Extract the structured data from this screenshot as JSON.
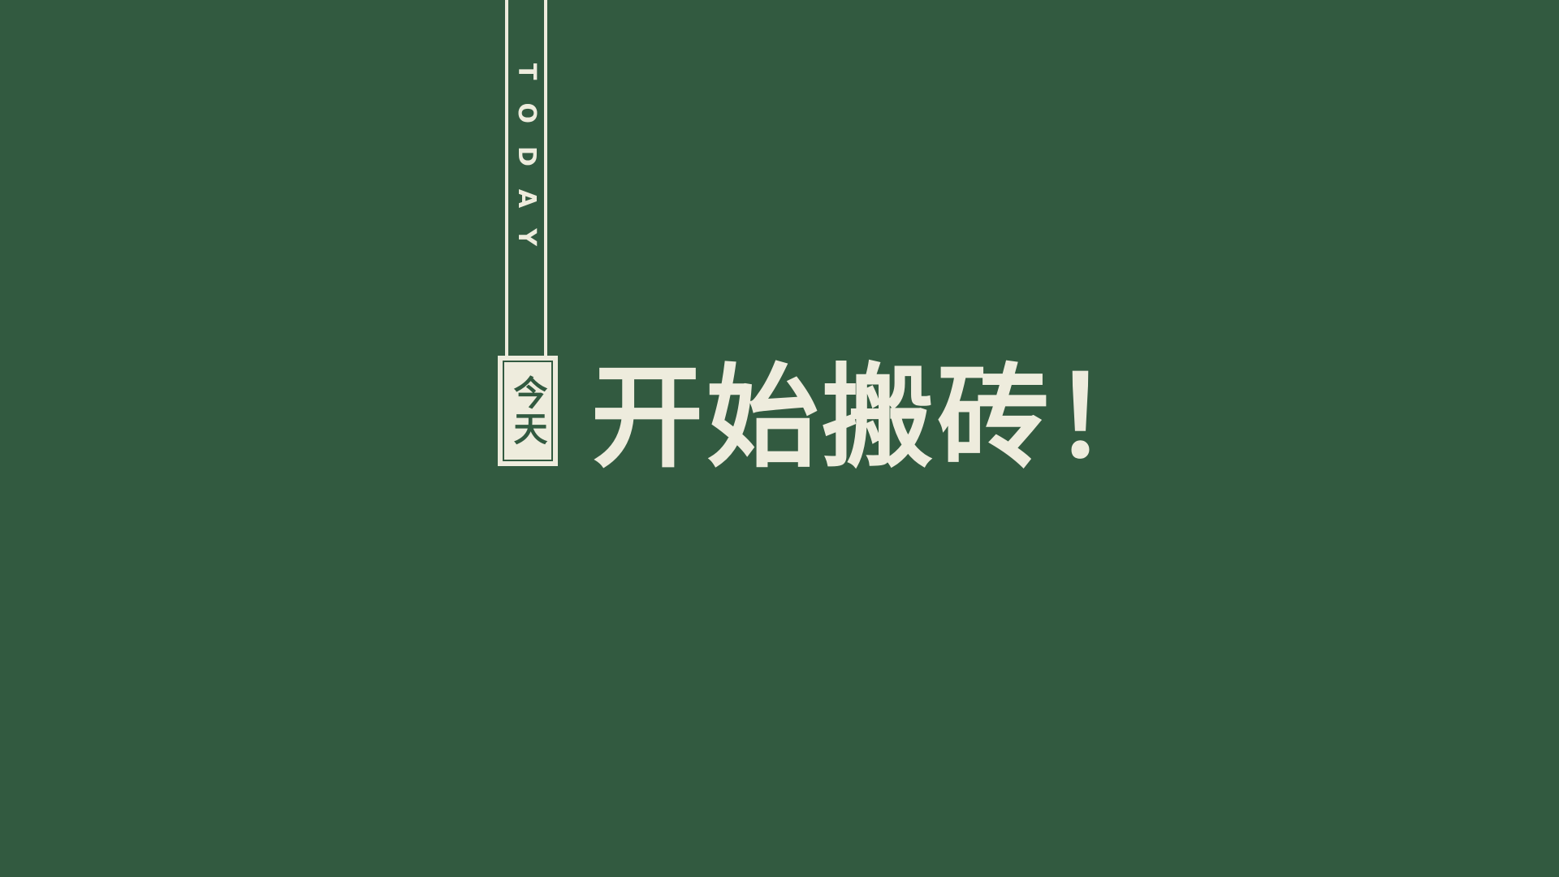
{
  "background_color": "#325a40",
  "foreground_color": "#eeecdd",
  "strap": {
    "text": "TODAY"
  },
  "tag": {
    "text": "今天"
  },
  "headline": {
    "text": "开始搬砖！"
  }
}
